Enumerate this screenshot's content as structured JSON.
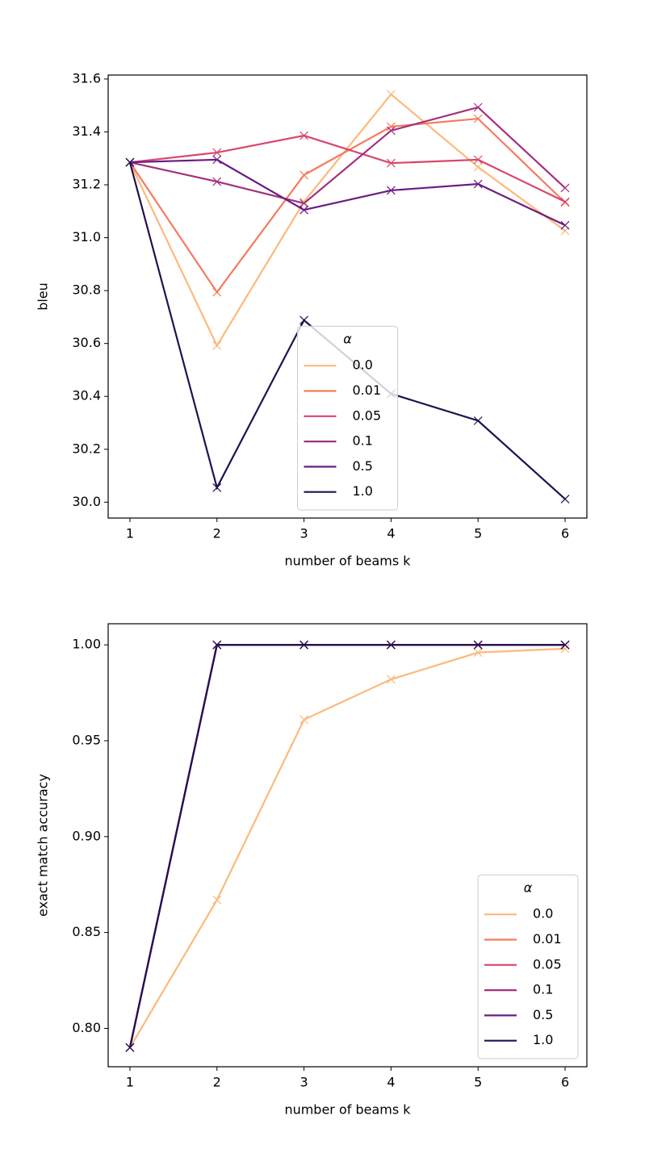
{
  "chart_data": [
    {
      "type": "line",
      "x_label": "number of beams k",
      "y_label": "bleu",
      "legend_title": "α",
      "legend_loc": "lower center",
      "x": [
        1,
        2,
        3,
        4,
        5,
        6
      ],
      "xlim": [
        0.75,
        6.25
      ],
      "xticks": [
        1,
        2,
        3,
        4,
        5,
        6
      ],
      "ylim": [
        29.94,
        31.615
      ],
      "yticks": [
        {
          "value": 30,
          "label": "30.0"
        },
        30.2,
        30.4,
        30.6,
        30.8,
        {
          "value": 31,
          "label": "31.0"
        },
        31.2,
        31.4,
        31.6
      ],
      "series": [
        {
          "name": "0.0",
          "color": "#fcb97d",
          "values": [
            31.285,
            30.592,
            31.136,
            31.542,
            31.267,
            31.026
          ]
        },
        {
          "name": "0.01",
          "color": "#f57b5e",
          "values": [
            31.285,
            30.794,
            31.237,
            31.42,
            31.45,
            31.133
          ]
        },
        {
          "name": "0.05",
          "color": "#d9466b",
          "values": [
            31.285,
            31.322,
            31.386,
            31.282,
            31.295,
            31.136
          ]
        },
        {
          "name": "0.1",
          "color": "#a3307e",
          "values": [
            31.285,
            31.212,
            31.13,
            31.405,
            31.493,
            31.188
          ]
        },
        {
          "name": "0.5",
          "color": "#6a1c81",
          "values": [
            31.285,
            31.295,
            31.105,
            31.179,
            31.203,
            31.047
          ]
        },
        {
          "name": "1.0",
          "color": "#231151",
          "values": [
            31.285,
            30.055,
            30.688,
            30.41,
            30.308,
            30.012
          ]
        }
      ]
    },
    {
      "type": "line",
      "x_label": "number of beams k",
      "y_label": "exact match accuracy",
      "legend_title": "α",
      "legend_loc": "lower right",
      "x": [
        1,
        2,
        3,
        4,
        5,
        6
      ],
      "xlim": [
        0.75,
        6.25
      ],
      "xticks": [
        1,
        2,
        3,
        4,
        5,
        6
      ],
      "ylim": [
        0.78,
        1.011
      ],
      "yticks": [
        {
          "value": 0.8,
          "label": "0.80"
        },
        0.85,
        {
          "value": 0.9,
          "label": "0.90"
        },
        0.95,
        {
          "value": 1,
          "label": "1.00"
        }
      ],
      "series": [
        {
          "name": "0.0",
          "color": "#fcb97d",
          "values": [
            0.79,
            0.867,
            0.961,
            0.982,
            0.996,
            0.998
          ]
        },
        {
          "name": "0.01",
          "color": "#f57b5e",
          "values": [
            0.79,
            1,
            1,
            1,
            1,
            1
          ]
        },
        {
          "name": "0.05",
          "color": "#d9466b",
          "values": [
            0.79,
            1,
            1,
            1,
            1,
            1
          ]
        },
        {
          "name": "0.1",
          "color": "#a3307e",
          "values": [
            0.79,
            1,
            1,
            1,
            1,
            1
          ]
        },
        {
          "name": "0.5",
          "color": "#6a1c81",
          "values": [
            0.79,
            1,
            1,
            1,
            1,
            1
          ]
        },
        {
          "name": "1.0",
          "color": "#231151",
          "values": [
            0.79,
            1,
            1,
            1,
            1,
            1
          ]
        }
      ]
    }
  ]
}
